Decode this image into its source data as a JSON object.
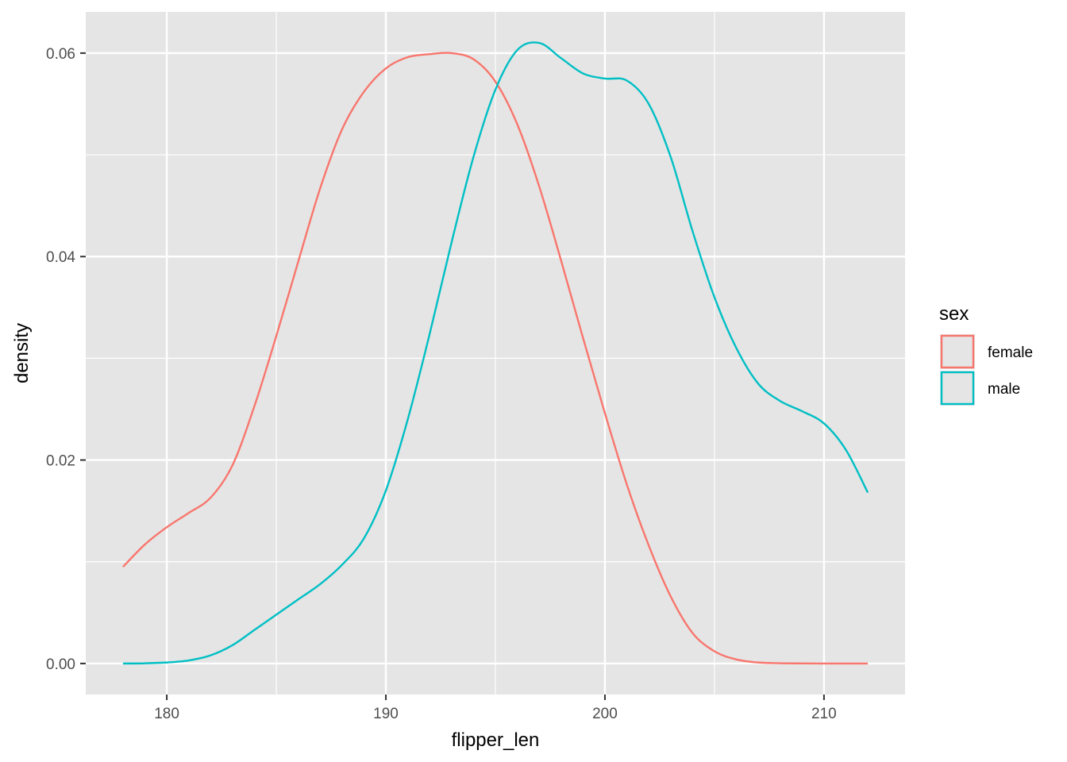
{
  "chart_data": {
    "type": "line",
    "title": "",
    "xlabel": "flipper_len",
    "ylabel": "density",
    "xlim": [
      176.3,
      213.7
    ],
    "ylim": [
      -0.00305,
      0.06405
    ],
    "x_ticks": [
      180,
      190,
      200,
      210
    ],
    "x_tick_labels": [
      "180",
      "190",
      "200",
      "210"
    ],
    "x_minor_ticks": [
      185,
      195,
      205
    ],
    "y_ticks": [
      0.0,
      0.02,
      0.04,
      0.06
    ],
    "y_tick_labels": [
      "0.00",
      "0.02",
      "0.04",
      "0.06"
    ],
    "y_minor_ticks": [
      0.01,
      0.03,
      0.05
    ],
    "grid": true,
    "legend": {
      "title": "sex",
      "position": "right",
      "entries": [
        "female",
        "male"
      ]
    },
    "series": [
      {
        "name": "female",
        "color": "#F8766D",
        "x": [
          178,
          179,
          180,
          181,
          182,
          183,
          184,
          185,
          186,
          187,
          188,
          189,
          190,
          191,
          192,
          193,
          194,
          195,
          196,
          197,
          198,
          199,
          200,
          201,
          202,
          203,
          204,
          205,
          206,
          207,
          208,
          209,
          210,
          211,
          212
        ],
        "y": [
          0.0095,
          0.0117,
          0.0134,
          0.0148,
          0.0163,
          0.0195,
          0.0253,
          0.0322,
          0.0395,
          0.0467,
          0.0525,
          0.0562,
          0.0585,
          0.0596,
          0.0599,
          0.06,
          0.0594,
          0.0572,
          0.053,
          0.0469,
          0.0396,
          0.032,
          0.0246,
          0.0176,
          0.0116,
          0.0066,
          0.003,
          0.0012,
          0.0004,
          0.0001,
          3e-05,
          1e-05,
          0.0,
          0.0,
          0.0
        ]
      },
      {
        "name": "male",
        "color": "#00BFC4",
        "x": [
          178,
          179,
          180,
          181,
          182,
          183,
          184,
          185,
          186,
          187,
          188,
          189,
          190,
          191,
          192,
          193,
          194,
          195,
          196,
          197,
          198,
          199,
          200,
          201,
          202,
          203,
          204,
          205,
          206,
          207,
          208,
          209,
          210,
          211,
          212
        ],
        "y": [
          0.0,
          2e-05,
          0.0001,
          0.0003,
          0.0008,
          0.0018,
          0.0033,
          0.0048,
          0.0063,
          0.0078,
          0.0097,
          0.0123,
          0.017,
          0.024,
          0.0324,
          0.0414,
          0.0498,
          0.0564,
          0.0603,
          0.061,
          0.0595,
          0.058,
          0.0575,
          0.0573,
          0.055,
          0.0498,
          0.0425,
          0.036,
          0.031,
          0.0275,
          0.0258,
          0.0248,
          0.0236,
          0.021,
          0.0168
        ]
      }
    ]
  }
}
